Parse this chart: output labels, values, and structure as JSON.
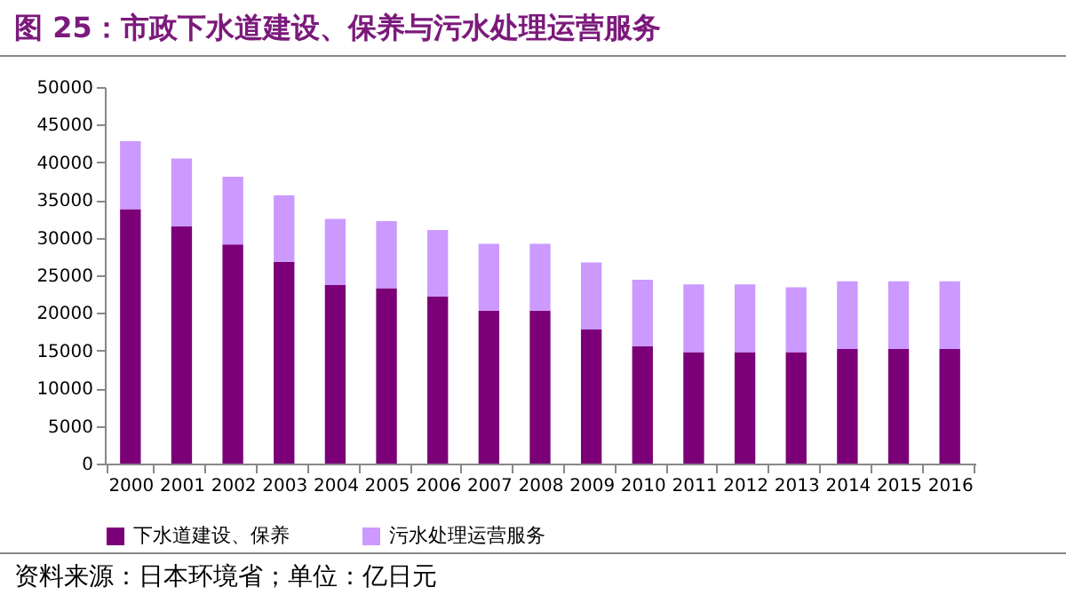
{
  "chart_data": {
    "type": "bar",
    "title": "图 25：市政下水道建设、保养与污水处理运营服务",
    "categories": [
      "2000",
      "2001",
      "2002",
      "2003",
      "2004",
      "2005",
      "2006",
      "2007",
      "2008",
      "2009",
      "2010",
      "2011",
      "2012",
      "2013",
      "2014",
      "2015",
      "2016"
    ],
    "series": [
      {
        "name": "下水道建设、保养",
        "color": "#7b0078",
        "values": [
          33800,
          31500,
          29100,
          26800,
          23700,
          23300,
          22200,
          20300,
          20300,
          17800,
          15600,
          14800,
          14800,
          14800,
          15200,
          15200,
          15200
        ]
      },
      {
        "name": "污水处理运营服务",
        "color": "#cc99ff",
        "values": [
          9000,
          9000,
          9000,
          8800,
          8800,
          8900,
          8800,
          8900,
          8900,
          8900,
          8800,
          9000,
          9000,
          8600,
          9000,
          9000,
          9000
        ]
      }
    ],
    "stacked": true,
    "ylim": [
      0,
      50000
    ],
    "yticks": [
      0,
      5000,
      10000,
      15000,
      20000,
      25000,
      30000,
      35000,
      40000,
      45000,
      50000
    ],
    "grid": false,
    "legend": "bottom",
    "annotations": [
      "资料来源：日本环境省；单位：亿日元"
    ]
  }
}
